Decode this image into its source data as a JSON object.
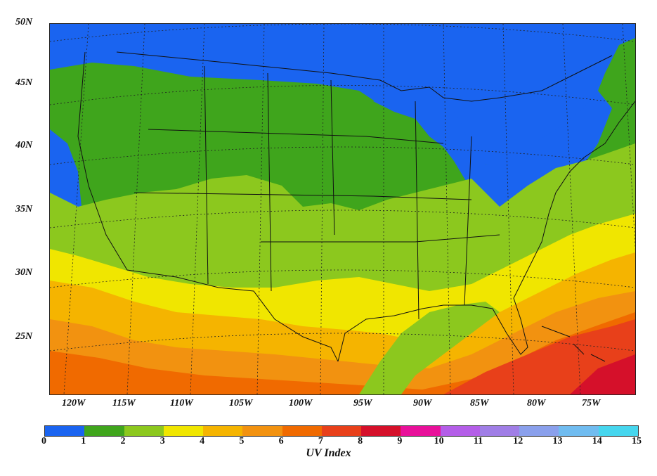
{
  "map": {
    "lat_labels": [
      "50N",
      "45N",
      "40N",
      "35N",
      "30N",
      "25N"
    ],
    "lon_labels": [
      "120W",
      "115W",
      "110W",
      "105W",
      "100W",
      "95W",
      "90W",
      "85W",
      "80W",
      "75W"
    ]
  },
  "colorbar": {
    "title": "UV Index",
    "ticks": [
      "0",
      "1",
      "2",
      "3",
      "4",
      "5",
      "6",
      "7",
      "8",
      "9",
      "10",
      "11",
      "12",
      "13",
      "14",
      "15"
    ],
    "colors": [
      "#1a64f0",
      "#3fa51c",
      "#8cc81e",
      "#f0e600",
      "#f5b400",
      "#f29210",
      "#f06a00",
      "#e8401a",
      "#d5102a",
      "#e8109a",
      "#b45ee8",
      "#a07ee6",
      "#8aa0ec",
      "#70bcf0",
      "#46d6ee"
    ]
  }
}
